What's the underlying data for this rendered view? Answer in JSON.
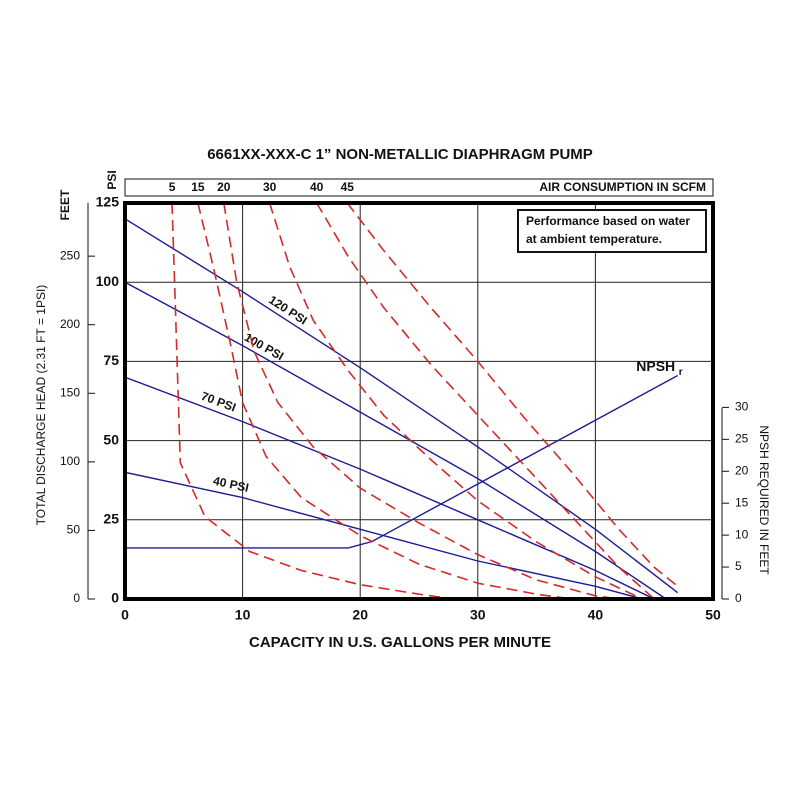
{
  "chart_data": {
    "type": "line",
    "title": "6661XX-XXX-C   1” NON-METALLIC DIAPHRAGM PUMP",
    "x_label": "CAPACITY IN U.S. GALLONS PER MINUTE",
    "y_label": "TOTAL DISCHARGE HEAD (2.31 FT = 1PSI)",
    "y2_label": "NPSH REQUIRED IN FEET",
    "top_axis_label": "AIR CONSUMPTION IN SCFM",
    "y_unit": "PSI",
    "y_feet_unit": "FEET",
    "xlim": [
      0,
      50
    ],
    "xticks": [
      0,
      10,
      20,
      30,
      40,
      50
    ],
    "ylim": [
      0,
      125
    ],
    "yticks": [
      0,
      25,
      50,
      75,
      100,
      125
    ],
    "y_feet_lim": [
      0,
      288.75
    ],
    "y_feet_ticks": [
      0,
      50,
      100,
      150,
      200,
      250
    ],
    "y2lim": [
      0,
      62
    ],
    "y2ticks": [
      0,
      5,
      10,
      15,
      20,
      25,
      30
    ],
    "grid": true,
    "annotation": [
      "Performance based on water",
      "at ambient temperature."
    ],
    "series": [
      {
        "name": "120 PSI",
        "group": "pressure",
        "color": "#1c1c96",
        "style": "solid",
        "x": [
          0,
          10,
          20,
          30,
          40,
          47
        ],
        "values": [
          120,
          97,
          73,
          48,
          22,
          2
        ]
      },
      {
        "name": "100 PSI",
        "group": "pressure",
        "color": "#1c1c96",
        "style": "solid",
        "x": [
          0,
          10,
          20,
          30,
          40,
          46
        ],
        "values": [
          100,
          80,
          59,
          38,
          15,
          0
        ]
      },
      {
        "name": "70 PSI",
        "group": "pressure",
        "color": "#1c1c96",
        "style": "solid",
        "x": [
          0,
          10,
          20,
          30,
          40,
          45
        ],
        "values": [
          70,
          56,
          41,
          25,
          9,
          0
        ]
      },
      {
        "name": "40 PSI",
        "group": "pressure",
        "color": "#1c1c96",
        "style": "solid",
        "x": [
          0,
          10,
          20,
          30,
          40,
          44
        ],
        "values": [
          40,
          32,
          22,
          12,
          4,
          0
        ]
      },
      {
        "name": "NPSH",
        "name_subscript": "r",
        "group": "npsh",
        "axis": "y2",
        "color": "#1c1c96",
        "style": "solid",
        "x": [
          0,
          19,
          21,
          47
        ],
        "values": [
          8,
          8,
          9,
          35
        ]
      },
      {
        "name": "5",
        "group": "air",
        "color": "#d42a2a",
        "style": "dashed",
        "x": [
          4,
          4.3,
          4.7,
          6.8,
          10.6,
          15,
          20,
          25,
          28
        ],
        "values": [
          125,
          90,
          43,
          26,
          15,
          9,
          4.5,
          1.5,
          0
        ]
      },
      {
        "name": "15",
        "group": "air",
        "color": "#d42a2a",
        "style": "dashed",
        "x": [
          6.2,
          7.5,
          9,
          10,
          12,
          15,
          20,
          25,
          30,
          35,
          38
        ],
        "values": [
          125,
          105,
          80,
          62,
          45,
          32,
          20,
          11,
          5,
          1.5,
          0
        ]
      },
      {
        "name": "20",
        "group": "air",
        "color": "#d42a2a",
        "style": "dashed",
        "x": [
          8.4,
          9.5,
          11,
          13,
          16,
          20,
          25,
          30,
          35,
          40,
          42
        ],
        "values": [
          125,
          100,
          78,
          62,
          48,
          35,
          24,
          14,
          6,
          1,
          0
        ]
      },
      {
        "name": "30",
        "group": "air",
        "color": "#d42a2a",
        "style": "dashed",
        "x": [
          12.3,
          14,
          16,
          19,
          22,
          26,
          30,
          35,
          40,
          44
        ],
        "values": [
          125,
          105,
          88,
          72,
          58,
          44,
          31,
          18,
          7,
          0
        ]
      },
      {
        "name": "40",
        "group": "air",
        "color": "#d42a2a",
        "style": "dashed",
        "x": [
          16.3,
          19,
          22,
          26,
          30,
          34,
          38,
          42,
          45
        ],
        "values": [
          125,
          108,
          92,
          74,
          58,
          42,
          26,
          10,
          0
        ]
      },
      {
        "name": "45",
        "group": "air",
        "color": "#d42a2a",
        "style": "dashed",
        "x": [
          18.9,
          22,
          26,
          30,
          34,
          38,
          42,
          45,
          47
        ],
        "values": [
          125,
          110,
          92,
          75,
          57,
          40,
          22,
          10,
          4
        ]
      }
    ]
  }
}
